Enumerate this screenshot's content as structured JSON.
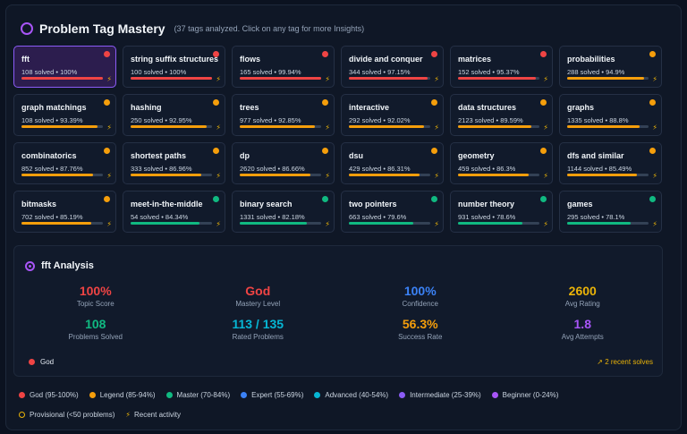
{
  "header": {
    "title": "Problem Tag Mastery",
    "subtitle": "(37 tags analyzed. Click on any tag for more Insights)"
  },
  "colors": {
    "god": "#ef4444",
    "legend": "#f59e0b",
    "master": "#10b981",
    "expert": "#3b82f6",
    "advanced": "#06b6d4",
    "intermediate": "#8b5cf6",
    "beginner": "#a855f7"
  },
  "tags": [
    {
      "name": "fft",
      "meta": "108 solved • 100%",
      "pct": 100,
      "level": "god",
      "selected": true
    },
    {
      "name": "string suffix structures",
      "meta": "100 solved • 100%",
      "pct": 100,
      "level": "god"
    },
    {
      "name": "flows",
      "meta": "165 solved • 99.94%",
      "pct": 99.94,
      "level": "god"
    },
    {
      "name": "divide and conquer",
      "meta": "344 solved • 97.15%",
      "pct": 97.15,
      "level": "god"
    },
    {
      "name": "matrices",
      "meta": "152 solved • 95.37%",
      "pct": 95.37,
      "level": "god"
    },
    {
      "name": "probabilities",
      "meta": "288 solved • 94.9%",
      "pct": 94.9,
      "level": "legend"
    },
    {
      "name": "graph matchings",
      "meta": "108 solved • 93.39%",
      "pct": 93.39,
      "level": "legend"
    },
    {
      "name": "hashing",
      "meta": "250 solved • 92.95%",
      "pct": 92.95,
      "level": "legend"
    },
    {
      "name": "trees",
      "meta": "977 solved • 92.85%",
      "pct": 92.85,
      "level": "legend"
    },
    {
      "name": "interactive",
      "meta": "292 solved • 92.02%",
      "pct": 92.02,
      "level": "legend"
    },
    {
      "name": "data structures",
      "meta": "2123 solved • 89.59%",
      "pct": 89.59,
      "level": "legend"
    },
    {
      "name": "graphs",
      "meta": "1335 solved • 88.8%",
      "pct": 88.8,
      "level": "legend"
    },
    {
      "name": "combinatorics",
      "meta": "852 solved • 87.76%",
      "pct": 87.76,
      "level": "legend"
    },
    {
      "name": "shortest paths",
      "meta": "333 solved • 86.96%",
      "pct": 86.96,
      "level": "legend"
    },
    {
      "name": "dp",
      "meta": "2620 solved • 86.66%",
      "pct": 86.66,
      "level": "legend"
    },
    {
      "name": "dsu",
      "meta": "429 solved • 86.31%",
      "pct": 86.31,
      "level": "legend"
    },
    {
      "name": "geometry",
      "meta": "459 solved • 86.3%",
      "pct": 86.3,
      "level": "legend"
    },
    {
      "name": "dfs and similar",
      "meta": "1144 solved • 85.49%",
      "pct": 85.49,
      "level": "legend"
    },
    {
      "name": "bitmasks",
      "meta": "702 solved • 85.19%",
      "pct": 85.19,
      "level": "legend"
    },
    {
      "name": "meet-in-the-middle",
      "meta": "54 solved • 84.34%",
      "pct": 84.34,
      "level": "master"
    },
    {
      "name": "binary search",
      "meta": "1331 solved • 82.18%",
      "pct": 82.18,
      "level": "master"
    },
    {
      "name": "two pointers",
      "meta": "663 solved • 79.6%",
      "pct": 79.6,
      "level": "master"
    },
    {
      "name": "number theory",
      "meta": "931 solved • 78.6%",
      "pct": 78.6,
      "level": "master"
    },
    {
      "name": "games",
      "meta": "295 solved • 78.1%",
      "pct": 78.1,
      "level": "master"
    }
  ],
  "analysis": {
    "title": "fft Analysis",
    "stats": [
      {
        "value": "100%",
        "label": "Topic Score",
        "color": "#ef4444"
      },
      {
        "value": "God",
        "label": "Mastery Level",
        "color": "#ef4444"
      },
      {
        "value": "100%",
        "label": "Confidence",
        "color": "#3b82f6"
      },
      {
        "value": "2600",
        "label": "Avg Rating",
        "color": "#eab308"
      },
      {
        "value": "108",
        "label": "Problems Solved",
        "color": "#10b981"
      },
      {
        "value": "113 / 135",
        "label": "Rated Problems",
        "color": "#06b6d4"
      },
      {
        "value": "56.3%",
        "label": "Success Rate",
        "color": "#f59e0b"
      },
      {
        "value": "1.8",
        "label": "Avg Attempts",
        "color": "#a855f7"
      }
    ],
    "level_label": "God",
    "recent": "2 recent solves",
    "recent_icon": "trend-up-icon"
  },
  "legend": [
    {
      "label": "God (95-100%)",
      "color": "#ef4444"
    },
    {
      "label": "Legend (85-94%)",
      "color": "#f59e0b"
    },
    {
      "label": "Master (70-84%)",
      "color": "#10b981"
    },
    {
      "label": "Expert (55-69%)",
      "color": "#3b82f6"
    },
    {
      "label": "Advanced (40-54%)",
      "color": "#06b6d4"
    },
    {
      "label": "Intermediate (25-39%)",
      "color": "#8b5cf6"
    },
    {
      "label": "Beginner (0-24%)",
      "color": "#a855f7"
    }
  ],
  "footer": {
    "provisional": "Provisional (<50 problems)",
    "recent": "Recent activity"
  }
}
